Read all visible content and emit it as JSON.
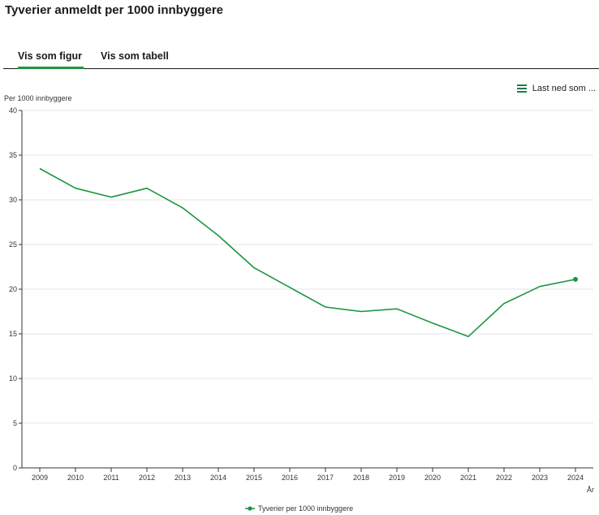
{
  "page": {
    "title": "Tyverier anmeldt per 1000 innbyggere"
  },
  "tabs": [
    {
      "label": "Vis som figur",
      "active": true
    },
    {
      "label": "Vis som tabell",
      "active": false
    }
  ],
  "download": {
    "label": "Last ned som ...",
    "icon": "menu-icon"
  },
  "colors": {
    "series": "#1a9641",
    "tab_active": "#1a9641",
    "grid": "#e6e6e6",
    "axis": "#333333"
  },
  "chart_data": {
    "type": "line",
    "title": "",
    "xlabel": "År",
    "ylabel": "Per 1000 innbyggere",
    "ylim": [
      0,
      40
    ],
    "yticks": [
      0,
      5,
      10,
      15,
      20,
      25,
      30,
      35,
      40
    ],
    "grid": true,
    "legend": "bottom-center",
    "categories": [
      "2009",
      "2010",
      "2011",
      "2012",
      "2013",
      "2014",
      "2015",
      "2016",
      "2017",
      "2018",
      "2019",
      "2020",
      "2021",
      "2022",
      "2023",
      "2024"
    ],
    "series": [
      {
        "name": "Tyverier per 1000 innbyggere",
        "values": [
          33.5,
          31.3,
          30.3,
          31.3,
          29.1,
          26.0,
          22.4,
          20.2,
          18.0,
          17.5,
          17.8,
          16.2,
          14.7,
          18.4,
          20.3,
          21.1
        ]
      }
    ]
  }
}
